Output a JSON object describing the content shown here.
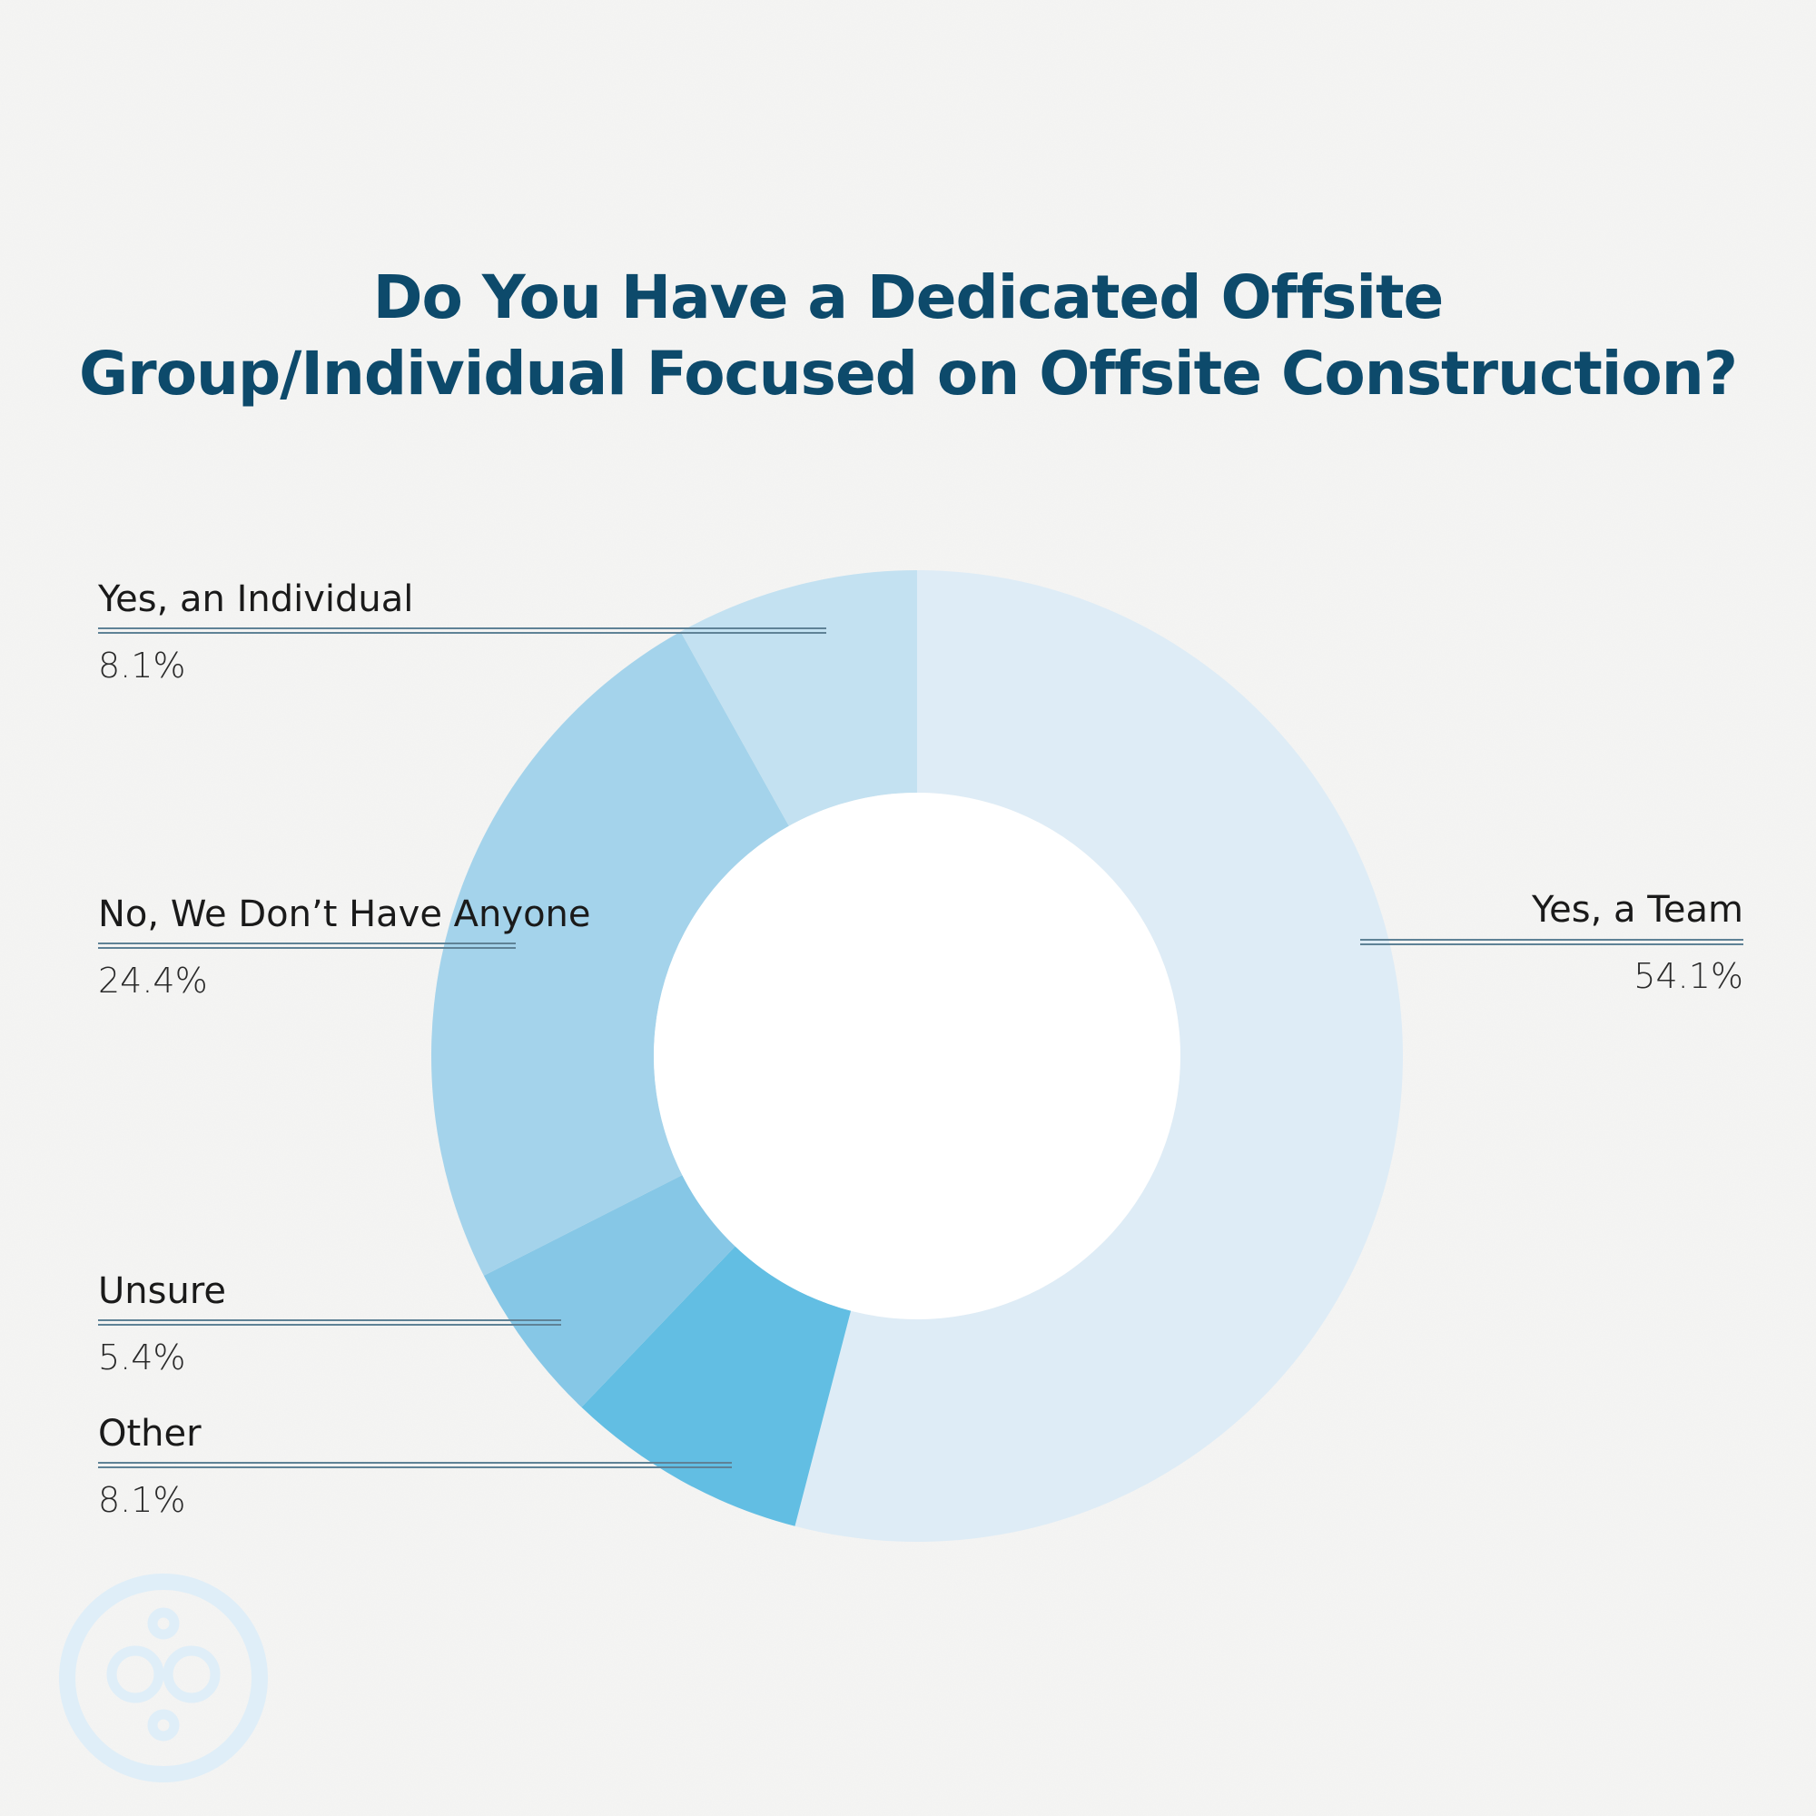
{
  "chart_data": {
    "type": "pie",
    "title": "Do You Have a Dedicated Offsite Group/Individual Focused on Offsite Construction?",
    "title_lines": [
      "Do You Have a Dedicated Offsite",
      "Group/Individual Focused on Offsite Construction?"
    ],
    "donut": true,
    "slices": [
      {
        "label": "Yes, a Team",
        "value": 54.1,
        "value_label": "54.1%",
        "color": "#deecf6"
      },
      {
        "label": "Other",
        "value": 8.1,
        "value_label": "8.1%",
        "color": "#62bee3"
      },
      {
        "label": "Unsure",
        "value": 5.4,
        "value_label": "5.4%",
        "color": "#86c7e6"
      },
      {
        "label": "No, We Don’t Have Anyone",
        "value": 24.4,
        "value_label": "24.4%",
        "color": "#a4d3eb"
      },
      {
        "label": "Yes, an Individual",
        "value": 8.1,
        "value_label": "8.1%",
        "color": "#c3e1f1"
      }
    ],
    "start": "12 o'clock",
    "direction": "clockwise"
  },
  "colors": {
    "title": "#0d4a6b",
    "background": "#f5f5f4",
    "leader_line": "#5f8296",
    "logo": "#dfeef8"
  },
  "logo_icon": "circles-logo-icon"
}
